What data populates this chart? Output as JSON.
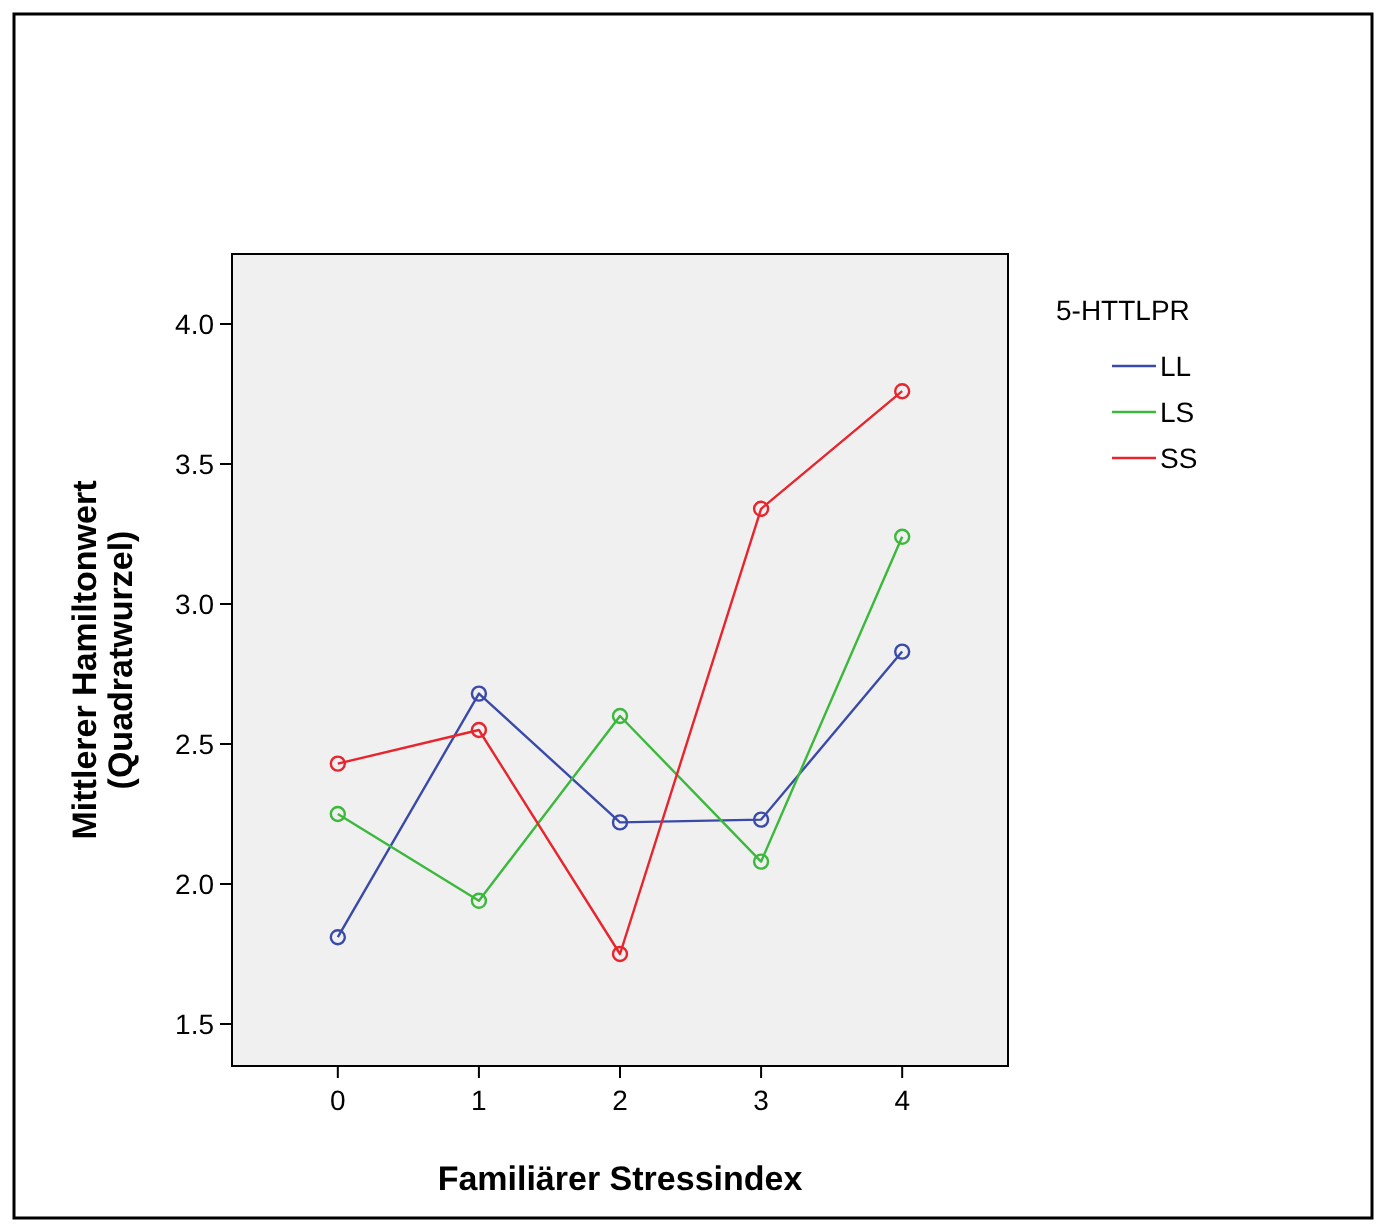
{
  "chart_data": {
    "type": "line",
    "xlabel": "Familiärer Stressindex",
    "ylabel": "Mittlerer Hamiltonwert (Quadratwurzel)",
    "legend_title": "5-HTTLPR",
    "x": [
      0,
      1,
      2,
      3,
      4
    ],
    "xlim": [
      -0.75,
      4.75
    ],
    "xticks": [
      0,
      1,
      2,
      3,
      4
    ],
    "ylim": [
      1.35,
      4.25
    ],
    "yticks": [
      {
        "value": 1.5,
        "label": "1.5"
      },
      {
        "value": 2,
        "label": "2.0"
      },
      {
        "value": 2.5,
        "label": "2.5"
      },
      {
        "value": 3,
        "label": "3.0"
      },
      {
        "value": 3.5,
        "label": "3.5"
      },
      {
        "value": 4,
        "label": "4.0"
      }
    ],
    "grid": false,
    "legend": "right",
    "marker": "circle",
    "line_style": "solid",
    "series": [
      {
        "name": "LL",
        "color": "#3a4aa8",
        "values": [
          1.81,
          2.68,
          2.22,
          2.23,
          2.83
        ]
      },
      {
        "name": "LS",
        "color": "#3cb83c",
        "values": [
          2.25,
          1.94,
          2.6,
          2.08,
          3.24
        ]
      },
      {
        "name": "SS",
        "color": "#e8242c",
        "values": [
          2.43,
          2.55,
          1.75,
          3.34,
          3.76
        ]
      }
    ]
  }
}
